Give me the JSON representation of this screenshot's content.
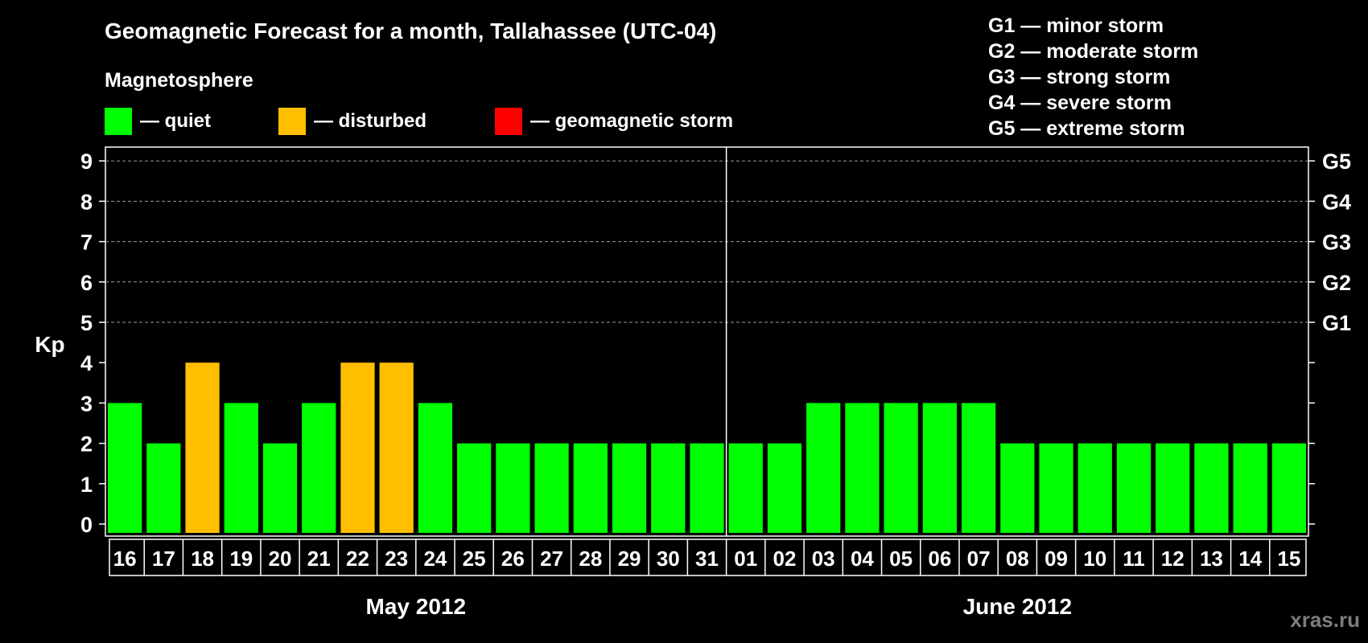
{
  "chart_data": {
    "type": "bar",
    "title": "Geomagnetic Forecast for a month, Tallahassee (UTC-04)",
    "subtitle": "Magnetosphere",
    "ylabel": "Kp",
    "ylim": [
      0,
      9
    ],
    "yticks": [
      "0",
      "1",
      "2",
      "3",
      "4",
      "5",
      "6",
      "7",
      "8",
      "9"
    ],
    "gridlines": [
      5,
      6,
      7,
      8,
      9
    ],
    "right_axis_labels": [
      {
        "kp": 5,
        "label": "G1"
      },
      {
        "kp": 6,
        "label": "G2"
      },
      {
        "kp": 7,
        "label": "G3"
      },
      {
        "kp": 8,
        "label": "G4"
      },
      {
        "kp": 9,
        "label": "G5"
      }
    ],
    "legend": [
      {
        "label": "— quiet",
        "color": "#00ff00"
      },
      {
        "label": "— disturbed",
        "color": "#ffbf00"
      },
      {
        "label": "— geomagnetic storm",
        "color": "#ff0000"
      }
    ],
    "storm_scale": [
      "G1 — minor storm",
      "G2 — moderate storm",
      "G3 — strong storm",
      "G4 — severe storm",
      "G5 — extreme storm"
    ],
    "months": [
      {
        "label": "May 2012",
        "count": 16
      },
      {
        "label": "June 2012",
        "count": 15
      }
    ],
    "categories": [
      "16",
      "17",
      "18",
      "19",
      "20",
      "21",
      "22",
      "23",
      "24",
      "25",
      "26",
      "27",
      "28",
      "29",
      "30",
      "31",
      "01",
      "02",
      "03",
      "04",
      "05",
      "06",
      "07",
      "08",
      "09",
      "10",
      "11",
      "12",
      "13",
      "14",
      "15"
    ],
    "values": [
      3,
      2,
      4,
      3,
      2,
      3,
      4,
      4,
      3,
      2,
      2,
      2,
      2,
      2,
      2,
      2,
      2,
      2,
      3,
      3,
      3,
      3,
      3,
      2,
      2,
      2,
      2,
      2,
      2,
      2,
      2
    ],
    "colors": [
      "#00ff00",
      "#00ff00",
      "#ffbf00",
      "#00ff00",
      "#00ff00",
      "#00ff00",
      "#ffbf00",
      "#ffbf00",
      "#00ff00",
      "#00ff00",
      "#00ff00",
      "#00ff00",
      "#00ff00",
      "#00ff00",
      "#00ff00",
      "#00ff00",
      "#00ff00",
      "#00ff00",
      "#00ff00",
      "#00ff00",
      "#00ff00",
      "#00ff00",
      "#00ff00",
      "#00ff00",
      "#00ff00",
      "#00ff00",
      "#00ff00",
      "#00ff00",
      "#00ff00",
      "#00ff00",
      "#00ff00"
    ]
  },
  "credit": "xras.ru"
}
